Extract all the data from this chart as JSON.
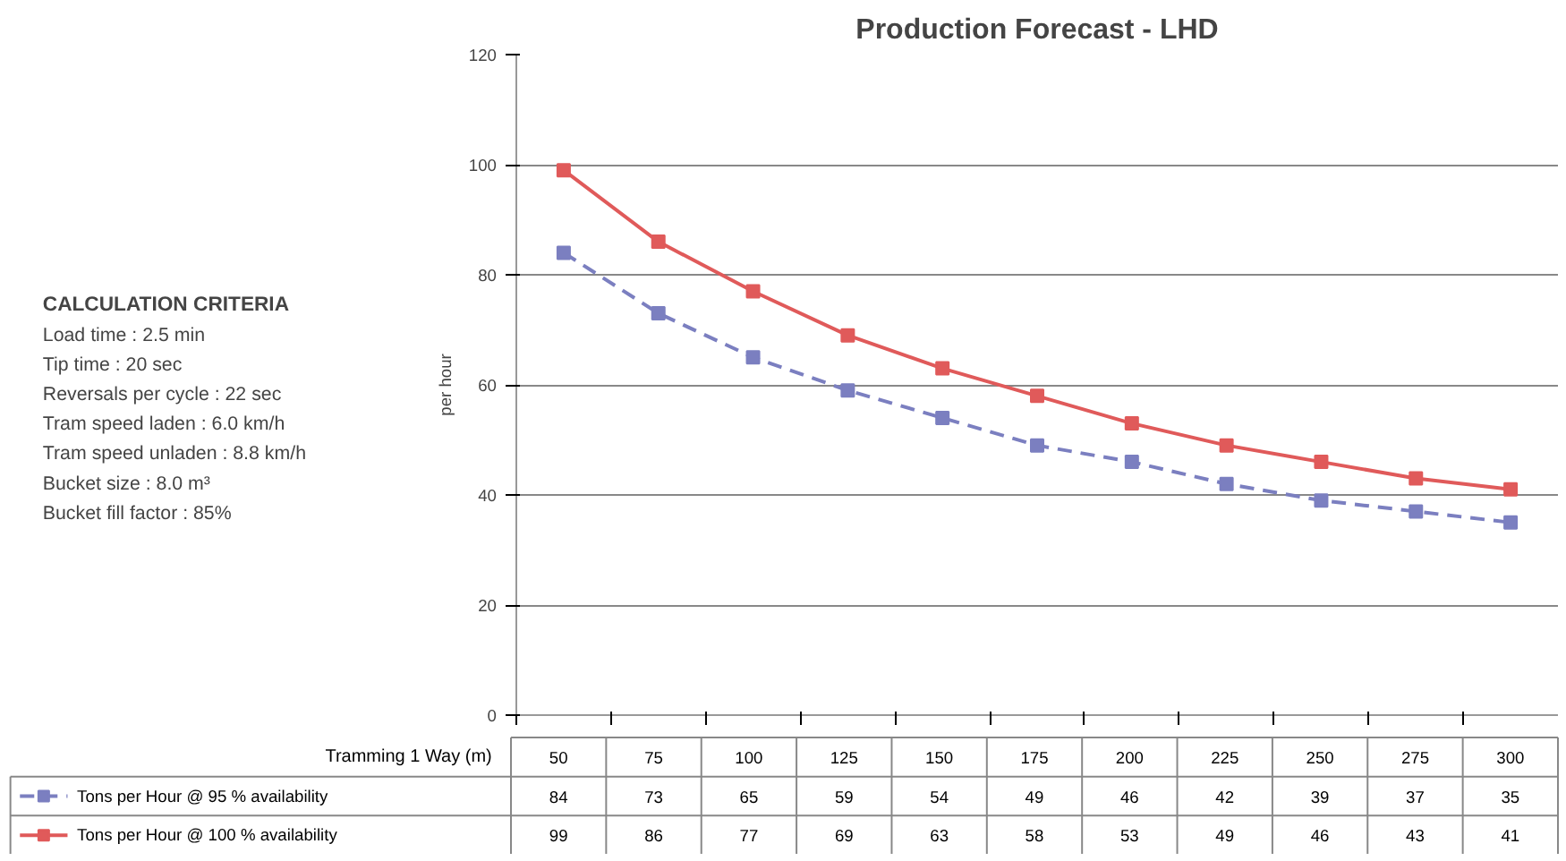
{
  "chart_data": {
    "type": "line",
    "title": "Production Forecast - LHD",
    "ylabel": "per hour",
    "xlabel": "Tramming 1 Way (m)",
    "categories": [
      "50",
      "75",
      "100",
      "125",
      "150",
      "175",
      "200",
      "225",
      "250",
      "275",
      "300"
    ],
    "series": [
      {
        "name": "Tons per Hour @ 95 % availability",
        "color": "#7b7fc0",
        "line_style": "dashed",
        "marker": "square",
        "values": [
          84,
          73,
          65,
          59,
          54,
          49,
          46,
          42,
          39,
          37,
          35
        ]
      },
      {
        "name": "Tons per Hour @ 100 % availability",
        "color": "#e05a5a",
        "line_style": "solid",
        "marker": "square",
        "values": [
          99,
          86,
          77,
          69,
          63,
          58,
          53,
          49,
          46,
          43,
          41
        ]
      }
    ],
    "ylim": [
      0,
      120
    ],
    "yticks": [
      0,
      20,
      40,
      60,
      80,
      100,
      120
    ],
    "grid": "y",
    "tick_labels": "y",
    "legend": "bottom left",
    "data_labels": true,
    "annotations": [
      "CALCULATION CRITERIA",
      "Load time : 2.5 min",
      "Tip time : 20 sec",
      "Reversals per cycle : 22 sec",
      "Tram speed laden : 6.0 km/h",
      "Tram speed unladen : 8.8 km/h",
      "Bucket size : 8.0 m³",
      "Bucket fill factor : 85%"
    ]
  }
}
